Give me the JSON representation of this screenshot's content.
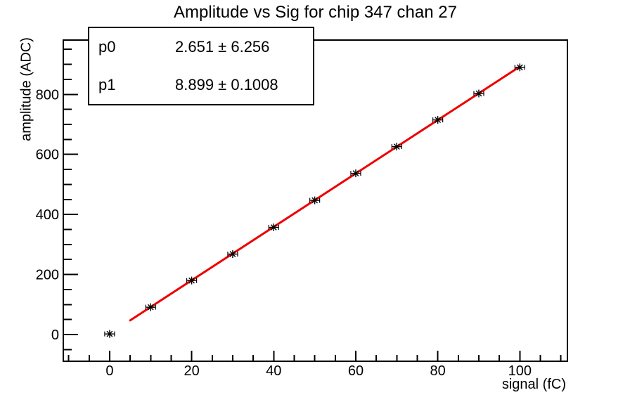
{
  "title": "Amplitude vs Sig for chip 347 chan 27",
  "stats": {
    "rows": [
      {
        "name": "p0",
        "value": "2.651 ± 6.256"
      },
      {
        "name": "p1",
        "value": "8.899 ± 0.1008"
      }
    ]
  },
  "chart_data": {
    "type": "scatter",
    "title": "Amplitude vs Sig for chip 347 chan 27",
    "xlabel": "signal (fC)",
    "ylabel": "amplitude (ADC)",
    "x": [
      0,
      10,
      20,
      30,
      40,
      50,
      60,
      70,
      80,
      90,
      100
    ],
    "y": [
      2,
      91,
      180,
      268,
      357,
      447,
      537,
      626,
      715,
      803,
      890
    ],
    "xerr": 1.2,
    "marker": "star",
    "marker_color": "#000000",
    "fit": {
      "type": "linear",
      "p0": 2.651,
      "p0_err": 6.256,
      "p1": 8.899,
      "p1_err": 0.1008,
      "x_range": [
        5,
        100
      ],
      "color": "#ee0000"
    },
    "xlim": [
      -11.3,
      111.6
    ],
    "ylim": [
      -89,
      981
    ],
    "x_major_ticks": [
      0,
      20,
      40,
      60,
      80,
      100
    ],
    "x_minor_step": 5,
    "y_major_ticks": [
      0,
      200,
      400,
      600,
      800
    ],
    "y_minor_step": 50,
    "grid": false,
    "legend": false
  },
  "colors": {
    "background": "#ffffff",
    "frame": "#000000",
    "text": "#000000",
    "fit_line": "#ee0000"
  }
}
